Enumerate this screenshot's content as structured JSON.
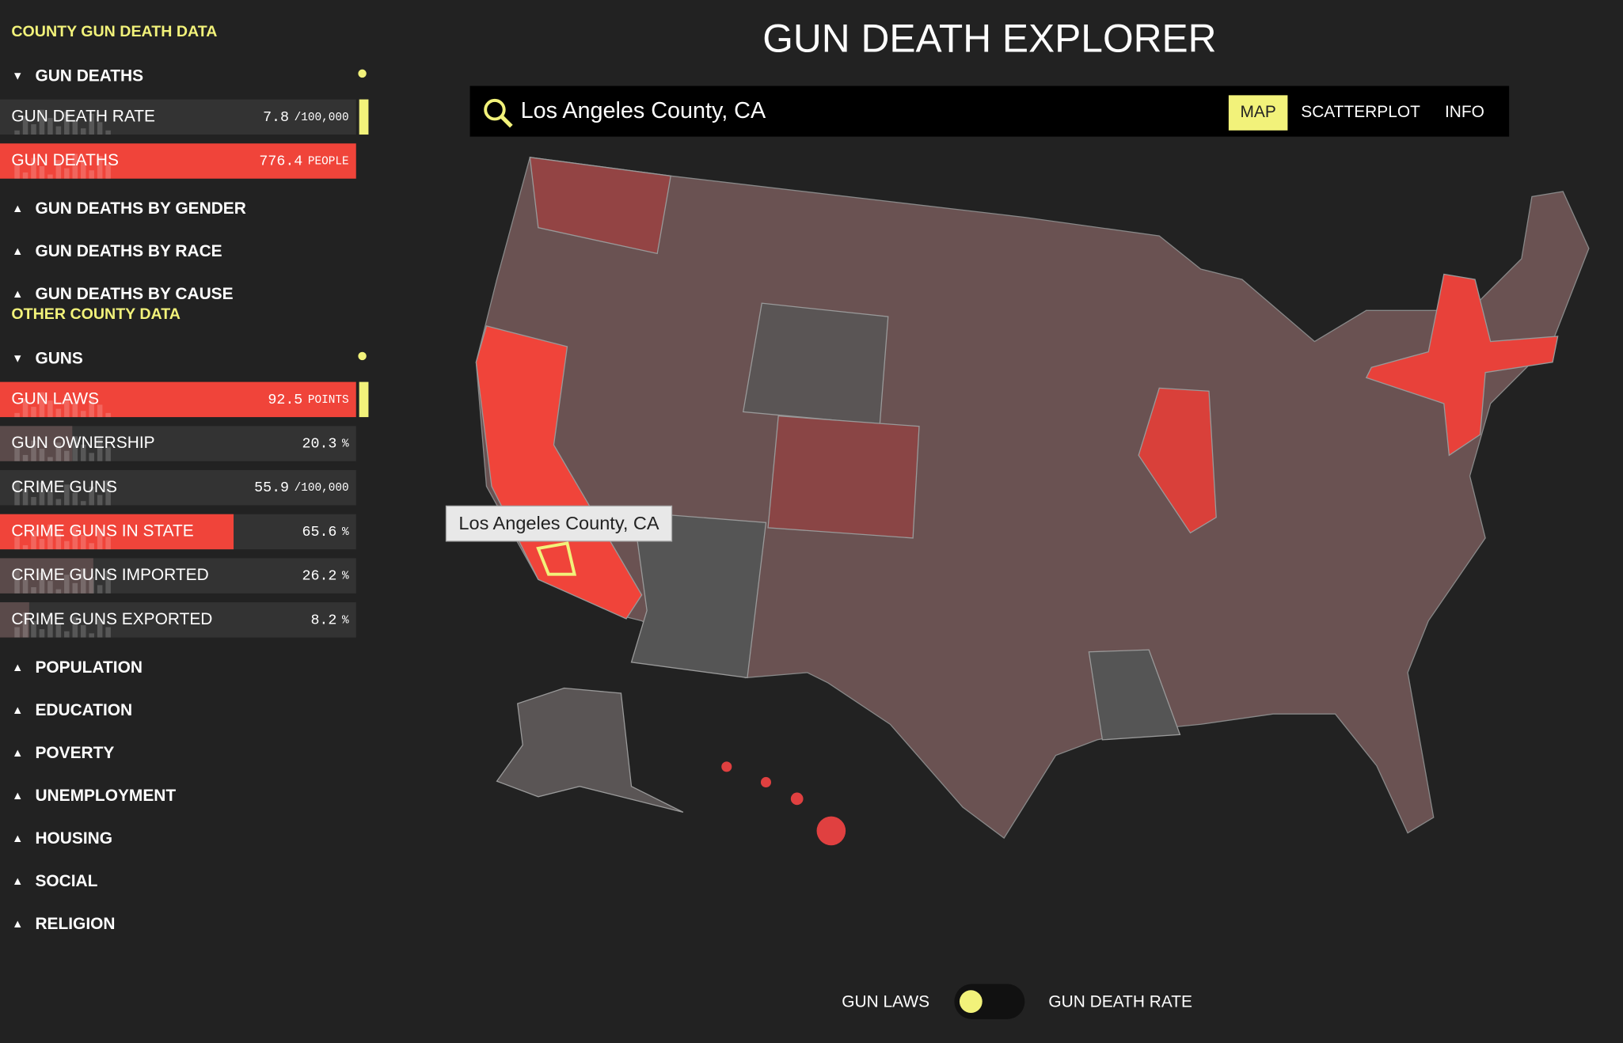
{
  "header": {
    "title": "GUN DEATH EXPLORER"
  },
  "search": {
    "query": "Los Angeles County, CA"
  },
  "tabs": [
    {
      "label": "MAP",
      "active": true
    },
    {
      "label": "SCATTERPLOT"
    },
    {
      "label": "INFO"
    }
  ],
  "sidebar": {
    "sections": [
      {
        "title": "COUNTY GUN DEATH DATA",
        "groups": [
          {
            "label": "GUN DEATHS",
            "expanded": true,
            "items": [
              {
                "label": "GUN DEATH RATE",
                "value": 7.8,
                "unit": "/100,000",
                "selected": true
              },
              {
                "label": "GUN DEATHS",
                "value": 776.4,
                "unit": "PEOPLE",
                "active": true
              }
            ]
          },
          {
            "label": "GUN DEATHS BY GENDER"
          },
          {
            "label": "GUN DEATHS BY RACE"
          },
          {
            "label": "GUN DEATHS BY CAUSE"
          }
        ]
      },
      {
        "title": "OTHER COUNTY DATA",
        "groups": [
          {
            "label": "GUNS",
            "expanded": true,
            "items": [
              {
                "label": "GUN LAWS",
                "value": 92.5,
                "unit": "POINTS",
                "active": true,
                "selected": true
              },
              {
                "label": "GUN OWNERSHIP",
                "value": 20.3,
                "unit": "%"
              },
              {
                "label": "CRIME GUNS",
                "value": 55.9,
                "unit": "/100,000"
              },
              {
                "label": "CRIME GUNS IN STATE",
                "value": 65.6,
                "unit": "%",
                "active": true
              },
              {
                "label": "CRIME GUNS IMPORTED",
                "value": 26.2,
                "unit": "%"
              },
              {
                "label": "CRIME GUNS EXPORTED",
                "value": 8.2,
                "unit": "%"
              }
            ]
          },
          {
            "label": "POPULATION"
          },
          {
            "label": "EDUCATION"
          },
          {
            "label": "POVERTY"
          },
          {
            "label": "UNEMPLOYMENT"
          },
          {
            "label": "HOUSING"
          },
          {
            "label": "SOCIAL"
          },
          {
            "label": "RELIGION"
          }
        ]
      }
    ]
  },
  "tooltip": {
    "text": "Los Angeles County, CA"
  },
  "toggle": {
    "left": "GUN LAWS",
    "right": "GUN DEATH RATE"
  }
}
